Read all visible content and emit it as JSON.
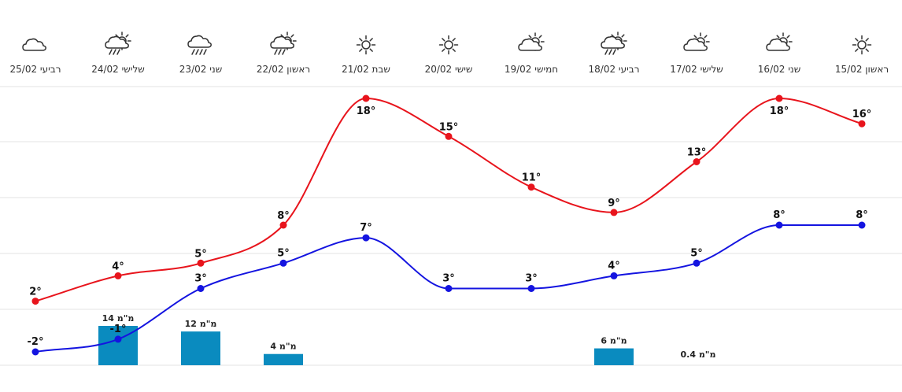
{
  "chart_data": {
    "type": "line",
    "title": "",
    "xlabel": "",
    "ylabel": "",
    "categories": [
      "ראשון 15/02",
      "שני 16/02",
      "שלישי 17/02",
      "רביעי 18/02",
      "חמישי 19/02",
      "שישי 20/02",
      "שבת 21/02",
      "ראשון 22/02",
      "שני 23/02",
      "שלישי 24/02",
      "רביעי 25/02"
    ],
    "x_axis_direction": "right-to-left",
    "icons": [
      "sun-icon",
      "partly-cloudy-icon",
      "partly-cloudy-icon",
      "sun-rain-icon",
      "partly-cloudy-icon",
      "sun-icon",
      "sun-icon",
      "sun-rain-icon",
      "rain-icon",
      "sun-rain-icon",
      "cloud-icon"
    ],
    "series": [
      {
        "key": "max",
        "color": "#e8141c",
        "values": [
          16,
          18,
          13,
          9,
          11,
          15,
          18,
          8,
          5,
          4,
          2
        ],
        "labels": [
          "16°",
          "18°",
          "13°",
          "9°",
          "11°",
          "15°",
          "18°",
          "8°",
          "5°",
          "4°",
          "2°"
        ]
      },
      {
        "key": "min",
        "color": "#1414e0",
        "values": [
          8,
          8,
          5,
          4,
          3,
          3,
          7,
          5,
          3,
          -1,
          -2
        ],
        "labels": [
          "8°",
          "8°",
          "5°",
          "4°",
          "3°",
          "3°",
          "7°",
          "5°",
          "3°",
          "-1°",
          "-2°"
        ]
      }
    ],
    "ylim": [
      -3,
      20
    ],
    "grid": true,
    "precipitation": {
      "color": "#0a8bbf",
      "values": [
        0,
        0,
        0,
        6,
        0,
        0,
        0,
        4,
        12,
        14,
        0
      ],
      "labels": [
        "",
        "",
        "",
        "6 מ\"מ",
        "",
        "",
        "",
        "4 מ\"מ",
        "12 מ\"מ",
        "14 מ\"מ",
        ""
      ],
      "extra_label": "0.4 מ\"מ"
    }
  }
}
